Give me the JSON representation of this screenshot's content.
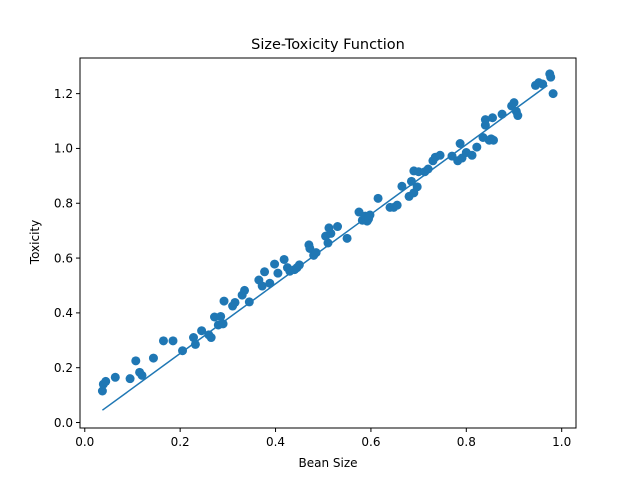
{
  "chart_data": {
    "type": "scatter",
    "title": "Size-Toxicity Function",
    "xlabel": "Bean Size",
    "ylabel": "Toxicity",
    "xlim": [
      -0.01,
      1.03
    ],
    "ylim": [
      -0.02,
      1.33
    ],
    "grid": false,
    "legend": "none",
    "x_ticks": [
      0.0,
      0.2,
      0.4,
      0.6,
      0.8,
      1.0
    ],
    "x_tick_labels": [
      "0.0",
      "0.2",
      "0.4",
      "0.6",
      "0.8",
      "1.0"
    ],
    "y_ticks": [
      0.0,
      0.2,
      0.4,
      0.6,
      0.8,
      1.0,
      1.2
    ],
    "y_tick_labels": [
      "0.0",
      "0.2",
      "0.4",
      "0.6",
      "0.8",
      "1.0",
      "1.2"
    ],
    "colors": {
      "series": "#1f77b4",
      "axes": "#000000"
    },
    "series": [
      {
        "name": "observations",
        "kind": "scatter",
        "x": [
          0.037,
          0.039,
          0.044,
          0.064,
          0.095,
          0.107,
          0.115,
          0.12,
          0.144,
          0.165,
          0.185,
          0.205,
          0.228,
          0.232,
          0.245,
          0.26,
          0.265,
          0.272,
          0.28,
          0.285,
          0.29,
          0.292,
          0.31,
          0.315,
          0.33,
          0.335,
          0.345,
          0.365,
          0.372,
          0.377,
          0.388,
          0.398,
          0.405,
          0.418,
          0.425,
          0.43,
          0.44,
          0.445,
          0.45,
          0.47,
          0.472,
          0.48,
          0.485,
          0.505,
          0.51,
          0.512,
          0.516,
          0.53,
          0.55,
          0.575,
          0.582,
          0.588,
          0.592,
          0.595,
          0.598,
          0.615,
          0.64,
          0.648,
          0.655,
          0.665,
          0.68,
          0.685,
          0.69,
          0.69,
          0.697,
          0.7,
          0.713,
          0.72,
          0.73,
          0.735,
          0.745,
          0.77,
          0.782,
          0.787,
          0.791,
          0.8,
          0.812,
          0.822,
          0.835,
          0.84,
          0.84,
          0.848,
          0.852,
          0.855,
          0.857,
          0.875,
          0.895,
          0.9,
          0.905,
          0.908,
          0.945,
          0.952,
          0.96,
          0.975,
          0.977,
          0.982
        ],
        "y": [
          0.115,
          0.14,
          0.15,
          0.165,
          0.16,
          0.225,
          0.183,
          0.172,
          0.235,
          0.298,
          0.298,
          0.262,
          0.31,
          0.285,
          0.335,
          0.32,
          0.31,
          0.385,
          0.356,
          0.387,
          0.36,
          0.443,
          0.425,
          0.438,
          0.465,
          0.482,
          0.44,
          0.52,
          0.498,
          0.55,
          0.508,
          0.578,
          0.545,
          0.595,
          0.565,
          0.552,
          0.558,
          0.565,
          0.575,
          0.648,
          0.635,
          0.61,
          0.62,
          0.68,
          0.655,
          0.71,
          0.69,
          0.715,
          0.672,
          0.768,
          0.738,
          0.753,
          0.735,
          0.743,
          0.757,
          0.818,
          0.785,
          0.785,
          0.793,
          0.862,
          0.825,
          0.88,
          0.918,
          0.838,
          0.86,
          0.915,
          0.915,
          0.925,
          0.955,
          0.968,
          0.975,
          0.972,
          0.955,
          1.018,
          0.965,
          0.985,
          0.975,
          1.005,
          1.04,
          1.085,
          1.105,
          1.03,
          1.035,
          1.112,
          1.03,
          1.125,
          1.155,
          1.167,
          1.135,
          1.12,
          1.23,
          1.24,
          1.235,
          1.272,
          1.26,
          1.2
        ]
      },
      {
        "name": "fitted line",
        "kind": "line",
        "x": [
          0.037,
          0.97
        ],
        "y": [
          0.045,
          1.23
        ]
      }
    ]
  }
}
